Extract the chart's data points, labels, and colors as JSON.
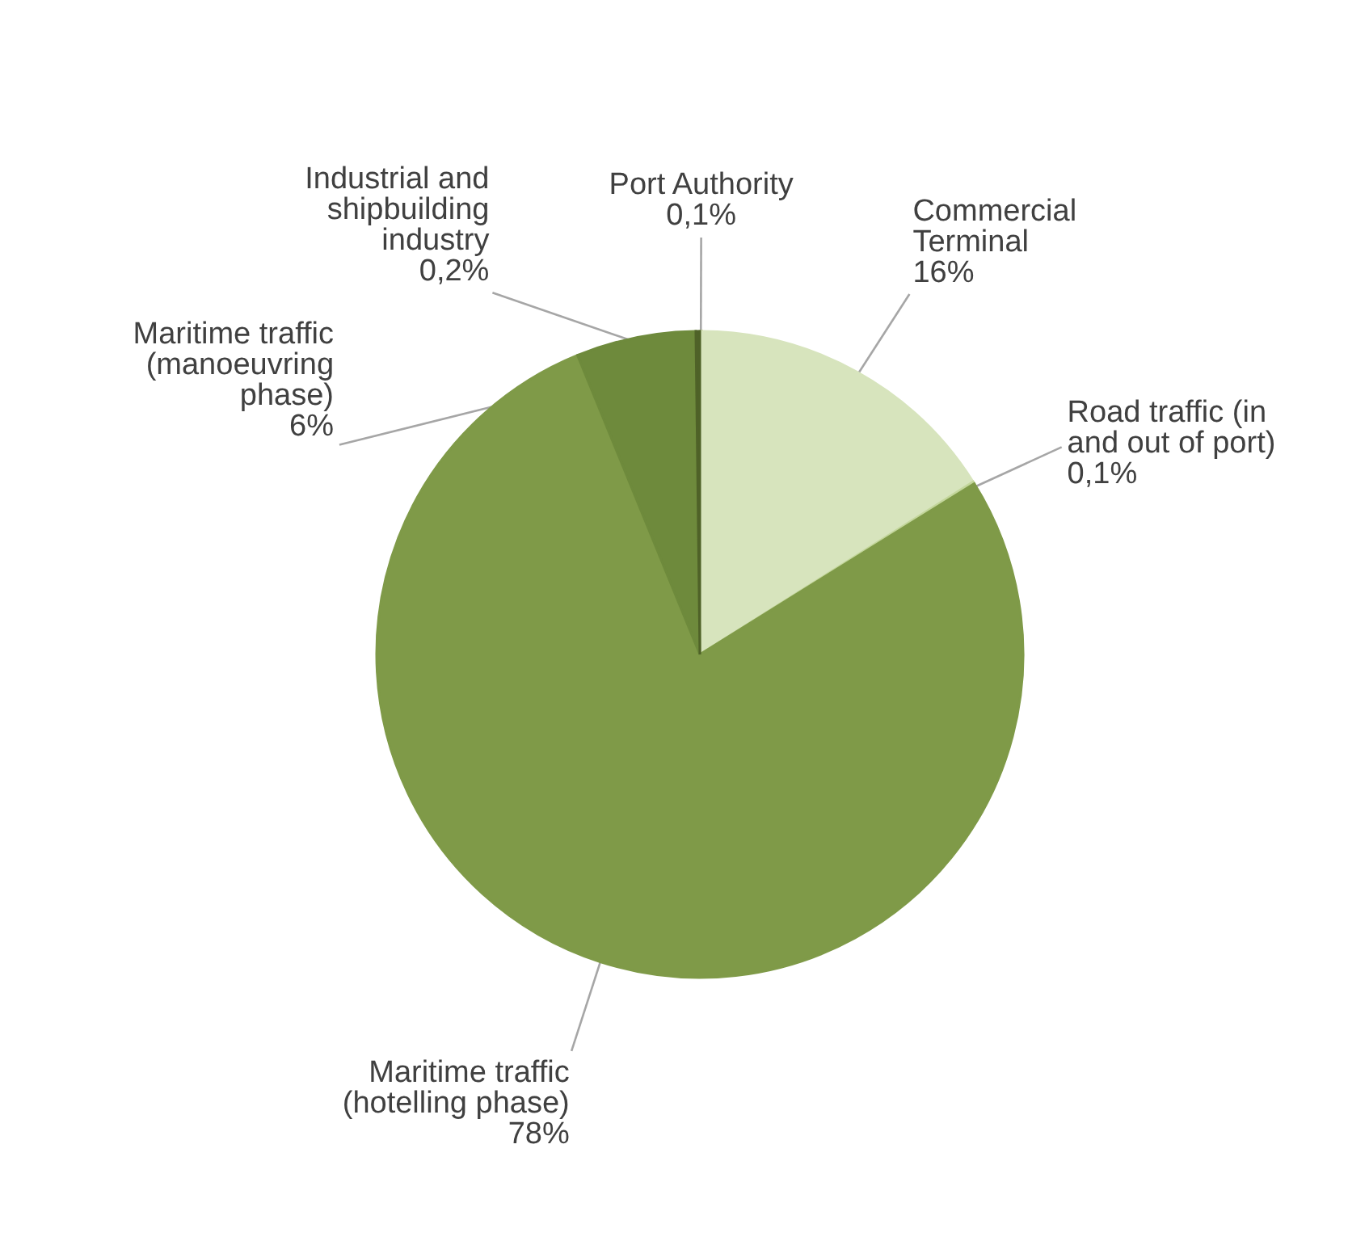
{
  "chart_data": {
    "type": "pie",
    "categories": [
      "Port Authority",
      "Commercial Terminal",
      "Road traffic (in and out of port)",
      "Maritime traffic (hotelling phase)",
      "Maritime traffic (manoeuvring phase)",
      "Industrial and shipbuilding industry"
    ],
    "values": [
      0.1,
      16,
      0.1,
      78,
      6,
      0.2
    ],
    "value_labels": [
      "0,1%",
      "16%",
      "0,1%",
      "78%",
      "6%",
      "0,2%"
    ],
    "colors": [
      "#9bbb59",
      "#d7e4bd",
      "#c3d69b",
      "#7f9a48",
      "#6e8a3c",
      "#4f6228"
    ]
  }
}
